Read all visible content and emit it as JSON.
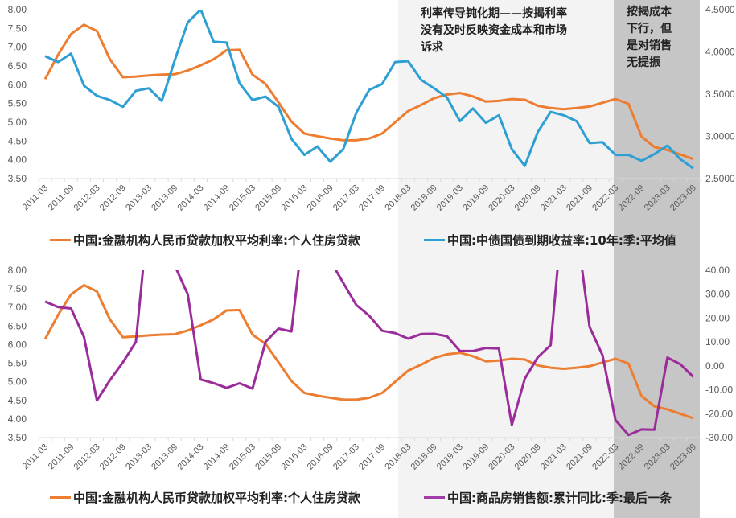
{
  "chart_data": [
    {
      "type": "line",
      "title": "",
      "x": [
        "2011-03",
        "2011-06",
        "2011-09",
        "2011-12",
        "2012-03",
        "2012-06",
        "2012-09",
        "2012-12",
        "2013-03",
        "2013-06",
        "2013-09",
        "2013-12",
        "2014-03",
        "2014-06",
        "2014-09",
        "2014-12",
        "2015-03",
        "2015-06",
        "2015-09",
        "2015-12",
        "2016-03",
        "2016-06",
        "2016-09",
        "2016-12",
        "2017-03",
        "2017-06",
        "2017-09",
        "2017-12",
        "2018-03",
        "2018-06",
        "2018-09",
        "2018-12",
        "2019-03",
        "2019-06",
        "2019-09",
        "2019-12",
        "2020-03",
        "2020-06",
        "2020-09",
        "2020-12",
        "2021-03",
        "2021-06",
        "2021-09",
        "2021-12",
        "2022-03",
        "2022-06",
        "2022-09",
        "2022-12",
        "2023-03",
        "2023-06",
        "2023-09"
      ],
      "tick_labels": [
        "2011-03",
        "2011-09",
        "2012-03",
        "2012-09",
        "2013-03",
        "2013-09",
        "2014-03",
        "2014-09",
        "2015-03",
        "2015-09",
        "2016-03",
        "2016-09",
        "2017-03",
        "2017-09",
        "2018-03",
        "2018-09",
        "2019-03",
        "2019-09",
        "2020-03",
        "2020-09",
        "2021-03",
        "2021-09",
        "2022-03",
        "2022-09",
        "2023-03",
        "2023-09"
      ],
      "left_axis": {
        "ylim": [
          3.5,
          8.0
        ],
        "ticks": [
          "8.00",
          "7.50",
          "7.00",
          "6.50",
          "6.00",
          "5.50",
          "5.00",
          "4.50",
          "4.00",
          "3.50"
        ]
      },
      "right_axis": {
        "ylim": [
          2.5,
          4.5
        ],
        "ticks": [
          "4.5000",
          "4.0000",
          "3.5000",
          "3.0000",
          "2.5000"
        ]
      },
      "series": [
        {
          "name": "中国:金融机构人民币贷款加权平均利率:个人住房贷款",
          "axis": "left",
          "color": "#ED7D31",
          "values": [
            6.15,
            6.8,
            7.35,
            7.6,
            7.43,
            6.68,
            6.2,
            6.22,
            6.25,
            6.27,
            6.28,
            6.38,
            6.52,
            6.68,
            6.92,
            6.93,
            6.27,
            6.02,
            5.53,
            5.02,
            4.7,
            4.63,
            4.57,
            4.52,
            4.52,
            4.57,
            4.7,
            5.0,
            5.3,
            5.46,
            5.64,
            5.74,
            5.78,
            5.69,
            5.55,
            5.57,
            5.62,
            5.6,
            5.44,
            5.38,
            5.35,
            5.38,
            5.42,
            5.52,
            5.62,
            5.49,
            4.62,
            4.34,
            4.26,
            4.14,
            4.02
          ]
        },
        {
          "name": "中国:中债国债到期收益率:10年:季:平均值",
          "axis": "right",
          "color": "#2E9FD3",
          "values": [
            3.95,
            3.88,
            3.98,
            3.6,
            3.48,
            3.43,
            3.35,
            3.54,
            3.57,
            3.42,
            3.9,
            4.35,
            4.5,
            4.12,
            4.11,
            3.63,
            3.43,
            3.47,
            3.35,
            2.97,
            2.78,
            2.88,
            2.7,
            2.85,
            3.28,
            3.55,
            3.62,
            3.88,
            3.89,
            3.67,
            3.57,
            3.46,
            3.18,
            3.33,
            3.16,
            3.25,
            2.85,
            2.65,
            3.05,
            3.29,
            3.25,
            3.18,
            2.92,
            2.93,
            2.78,
            2.78,
            2.71,
            2.79,
            2.89,
            2.73,
            2.62
          ]
        }
      ],
      "shaded_regions": [
        {
          "from": "2018-03",
          "to": "2022-03",
          "color": "#F3F3F3",
          "label": "利率传导钝化期——按揭利率没有及时反映资金成本和市场诉求"
        },
        {
          "from": "2022-03",
          "to": "2023-09",
          "color": "#C6C6C6",
          "label": "按揭成本下行，但是对销售无提振"
        }
      ],
      "grid": false,
      "legend_position": "bottom"
    },
    {
      "type": "line",
      "title": "",
      "x": [
        "2011-03",
        "2011-06",
        "2011-09",
        "2011-12",
        "2012-03",
        "2012-06",
        "2012-09",
        "2012-12",
        "2013-03",
        "2013-06",
        "2013-09",
        "2013-12",
        "2014-03",
        "2014-06",
        "2014-09",
        "2014-12",
        "2015-03",
        "2015-06",
        "2015-09",
        "2015-12",
        "2016-03",
        "2016-06",
        "2016-09",
        "2016-12",
        "2017-03",
        "2017-06",
        "2017-09",
        "2017-12",
        "2018-03",
        "2018-06",
        "2018-09",
        "2018-12",
        "2019-03",
        "2019-06",
        "2019-09",
        "2019-12",
        "2020-03",
        "2020-06",
        "2020-09",
        "2020-12",
        "2021-03",
        "2021-06",
        "2021-09",
        "2021-12",
        "2022-03",
        "2022-06",
        "2022-09",
        "2022-12",
        "2023-03",
        "2023-06",
        "2023-09"
      ],
      "tick_labels": [
        "2011-03",
        "2011-09",
        "2012-03",
        "2012-09",
        "2013-03",
        "2013-09",
        "2014-03",
        "2014-09",
        "2015-03",
        "2015-09",
        "2016-03",
        "2016-09",
        "2017-03",
        "2017-09",
        "2018-03",
        "2018-09",
        "2019-03",
        "2019-09",
        "2020-03",
        "2020-09",
        "2021-03",
        "2021-09",
        "2022-03",
        "2022-09",
        "2023-03",
        "2023-09"
      ],
      "left_axis": {
        "ylim": [
          3.5,
          8.0
        ],
        "ticks": [
          "8.00",
          "7.50",
          "7.00",
          "6.50",
          "6.00",
          "5.50",
          "5.00",
          "4.50",
          "4.00",
          "3.50"
        ]
      },
      "right_axis": {
        "ylim": [
          -30,
          40
        ],
        "ticks": [
          "40.00",
          "30.00",
          "20.00",
          "10.00",
          "0.00",
          "-10.00",
          "-20.00",
          "-30.00"
        ]
      },
      "series": [
        {
          "name": "中国:金融机构人民币贷款加权平均利率:个人住房贷款",
          "axis": "left",
          "color": "#ED7D31",
          "values": [
            6.15,
            6.8,
            7.35,
            7.6,
            7.43,
            6.68,
            6.2,
            6.22,
            6.25,
            6.27,
            6.28,
            6.38,
            6.52,
            6.68,
            6.92,
            6.93,
            6.27,
            6.02,
            5.53,
            5.02,
            4.7,
            4.63,
            4.57,
            4.52,
            4.52,
            4.57,
            4.7,
            5.0,
            5.3,
            5.46,
            5.64,
            5.74,
            5.78,
            5.69,
            5.55,
            5.57,
            5.62,
            5.6,
            5.44,
            5.38,
            5.35,
            5.38,
            5.42,
            5.52,
            5.62,
            5.49,
            4.62,
            4.34,
            4.26,
            4.14,
            4.02
          ]
        },
        {
          "name": "中国:商品房销售额:累计同比:季:最后一条",
          "axis": "right",
          "color": "#9B2D9B",
          "values": [
            26.9,
            24.6,
            24.0,
            12.1,
            -14.5,
            -6.0,
            1.5,
            10.0,
            65,
            60,
            42,
            30,
            -5.7,
            -7.2,
            -9.2,
            -7.3,
            -9.5,
            10.0,
            15.6,
            14.4,
            61,
            55,
            44,
            34.7,
            25.5,
            21,
            14.7,
            13.7,
            11.4,
            13.3,
            13.4,
            12.4,
            6.2,
            6.2,
            7.5,
            7.3,
            -24.7,
            -5.4,
            3.6,
            8.7,
            69,
            58,
            16.3,
            4.4,
            -22.7,
            -28.9,
            -26.6,
            -26.7,
            3.5,
            0.7,
            -4.6
          ]
        }
      ],
      "shaded_regions": [
        {
          "from": "2018-03",
          "to": "2022-03",
          "color": "#F3F3F3"
        },
        {
          "from": "2022-03",
          "to": "2023-09",
          "color": "#C6C6C6"
        }
      ],
      "grid": false,
      "legend_position": "bottom"
    }
  ],
  "annotations": {
    "period1": [
      "利率传导钝化期——按揭利率",
      "没有及时反映资金成本和市场",
      "诉求"
    ],
    "period2": [
      "按揭成本",
      "下行，但",
      "是对销售",
      "无提振"
    ]
  },
  "legends": {
    "top": [
      {
        "label": "中国:金融机构人民币贷款加权平均利率:个人住房贷款",
        "color": "#ED7D31"
      },
      {
        "label": "中国:中债国债到期收益率:10年:季:平均值",
        "color": "#2E9FD3"
      }
    ],
    "bottom": [
      {
        "label": "中国:金融机构人民币贷款加权平均利率:个人住房贷款",
        "color": "#ED7D31"
      },
      {
        "label": "中国:商品房销售额:累计同比:季:最后一条",
        "color": "#A03CA5"
      }
    ]
  },
  "colors": {
    "light_band": "#F3F3F3",
    "dark_band": "#C6C6C6",
    "axis_text": "#595959",
    "axis_line": "#D9D9D9"
  }
}
